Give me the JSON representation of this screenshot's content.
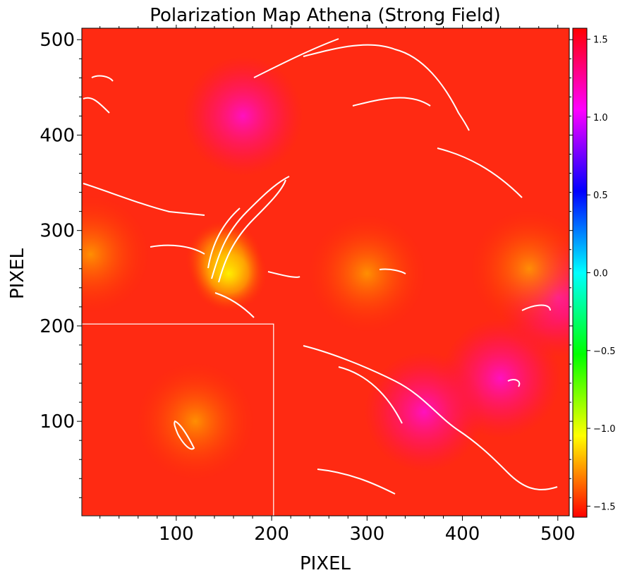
{
  "chart_data": {
    "type": "heatmap",
    "title": "Polarization Map Athena (Strong Field)",
    "xlabel": "PIXEL",
    "ylabel": "PIXEL",
    "xlim": [
      1,
      512
    ],
    "ylim": [
      1,
      512
    ],
    "x_ticks": [
      {
        "value": 100,
        "label": "100"
      },
      {
        "value": 200,
        "label": "200"
      },
      {
        "value": 300,
        "label": "300"
      },
      {
        "value": 400,
        "label": "400"
      },
      {
        "value": 500,
        "label": "500"
      }
    ],
    "y_ticks": [
      {
        "value": 100,
        "label": "100"
      },
      {
        "value": 200,
        "label": "200"
      },
      {
        "value": 300,
        "label": "300"
      },
      {
        "value": 400,
        "label": "400"
      },
      {
        "value": 500,
        "label": "500"
      }
    ],
    "colorbar": {
      "colormap": "hsv",
      "range": [
        -1.571,
        1.571
      ],
      "ticks": [
        {
          "value": -1.5,
          "label": "−1.5"
        },
        {
          "value": -1.0,
          "label": "−1.0"
        },
        {
          "value": -0.5,
          "label": "−0.5"
        },
        {
          "value": 0.0,
          "label": "0.0"
        },
        {
          "value": 0.5,
          "label": "0.5"
        },
        {
          "value": 1.0,
          "label": "1.0"
        },
        {
          "value": 1.5,
          "label": "1.5"
        }
      ]
    },
    "highlight_box": {
      "x0": 1,
      "x1": 202,
      "y0": 1,
      "y1": 202,
      "color": "#ffffff"
    },
    "contour_color": "#ffffff",
    "features": [
      {
        "kind": "yellow-spot",
        "x": 150,
        "y": 270,
        "value": -1.05
      },
      {
        "kind": "yellow-spot",
        "x": 155,
        "y": 255,
        "value": -1.1
      },
      {
        "kind": "magenta-spot",
        "x": 170,
        "y": 420,
        "value": 1.25
      },
      {
        "kind": "magenta-spot",
        "x": 440,
        "y": 145,
        "value": 1.3
      },
      {
        "kind": "magenta-spot",
        "x": 500,
        "y": 230,
        "value": 1.25
      },
      {
        "kind": "magenta-spot",
        "x": 360,
        "y": 110,
        "value": 1.4
      },
      {
        "kind": "orange-spot",
        "x": 10,
        "y": 275,
        "value": -1.3
      },
      {
        "kind": "orange-spot",
        "x": 300,
        "y": 255,
        "value": -1.35
      },
      {
        "kind": "orange-spot",
        "x": 120,
        "y": 100,
        "value": -1.35
      },
      {
        "kind": "orange-spot",
        "x": 470,
        "y": 260,
        "value": -1.35
      }
    ]
  }
}
